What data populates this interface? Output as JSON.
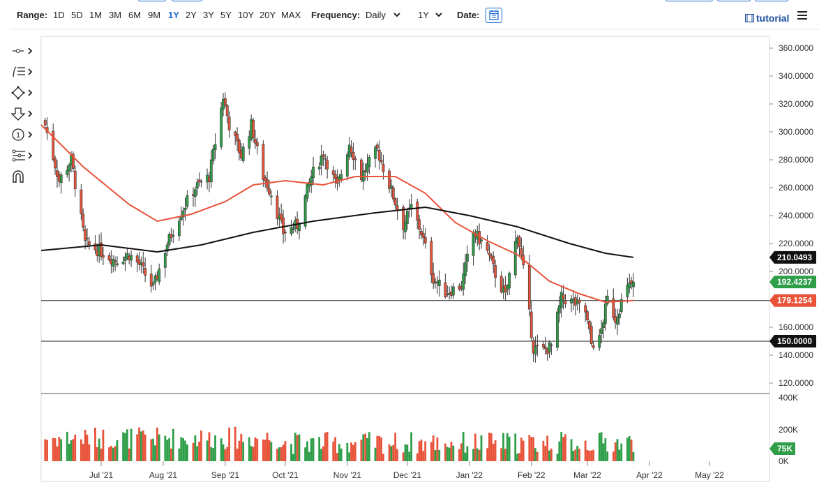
{
  "toolbar": {
    "range_label": "Range:",
    "ranges": [
      "1D",
      "5D",
      "1M",
      "3M",
      "6M",
      "9M",
      "1Y",
      "2Y",
      "3Y",
      "5Y",
      "10Y",
      "20Y",
      "MAX"
    ],
    "active_range": "1Y",
    "frequency_label": "Frequency:",
    "frequency_value": "Daily",
    "period_value": "1Y",
    "date_label": "Date:",
    "tutorial_label": "tutorial",
    "icons": [
      "chevron-down-icon",
      "calendar-icon",
      "film-icon",
      "hamburger-menu-icon"
    ]
  },
  "sidebar_tools": [
    "crosshair-tool-icon",
    "trendline-tool-icon",
    "shape-tool-icon",
    "arrow-tool-icon",
    "annotation-tool-icon",
    "fibonacci-tool-icon",
    "magnet-tool-icon"
  ],
  "colors": {
    "up": "#2e9e48",
    "down": "#e8533a",
    "ma_fast": "#e8533a",
    "ma_slow": "#111111",
    "tag_green": "#2e9e48",
    "tag_red": "#e8533a",
    "tag_black": "#111111"
  },
  "chart_data": {
    "type": "candlestick",
    "price_axis": {
      "ticks": [
        "360.0000",
        "340.0000",
        "320.0000",
        "300.0000",
        "280.0000",
        "260.0000",
        "240.0000",
        "220.0000",
        "200.0000",
        "160.0000",
        "140.0000",
        "120.0000"
      ],
      "range": [
        113,
        372
      ]
    },
    "volume_axis": {
      "ticks": [
        "400K",
        "200K",
        "0K"
      ],
      "range": [
        0,
        400000
      ]
    },
    "x_axis_labels": [
      "Jul '21",
      "Aug '21",
      "Sep '21",
      "Oct '21",
      "Nov '21",
      "Dec '21",
      "Jan '22",
      "Feb '22",
      "Mar '22",
      "Apr '22",
      "May '22"
    ],
    "x_range": [
      "2021-06-01",
      "2022-05-31"
    ],
    "horizontal_lines": [
      179.1254,
      150.0
    ],
    "price_tags": [
      {
        "label": "210.0493",
        "value": 210.0493,
        "color": "#111111"
      },
      {
        "label": "192.4237",
        "value": 192.4237,
        "color": "#2e9e48"
      },
      {
        "label": "179.1254",
        "value": 179.1254,
        "color": "#e8533a"
      },
      {
        "label": "150.0000",
        "value": 150.0,
        "color": "#111111"
      }
    ],
    "volume_tag": {
      "label": "75K",
      "value": 75000,
      "color": "#2e9e48"
    },
    "anchors": [
      [
        "2021-06-03",
        305
      ],
      [
        "2021-06-10",
        265
      ],
      [
        "2021-06-16",
        280
      ],
      [
        "2021-06-23",
        220
      ],
      [
        "2021-06-30",
        215
      ],
      [
        "2021-07-08",
        208
      ],
      [
        "2021-07-15",
        212
      ],
      [
        "2021-07-20",
        205
      ],
      [
        "2021-07-27",
        188
      ],
      [
        "2021-08-03",
        220
      ],
      [
        "2021-08-10",
        243
      ],
      [
        "2021-08-17",
        260
      ],
      [
        "2021-08-24",
        268
      ],
      [
        "2021-08-31",
        325
      ],
      [
        "2021-09-03",
        305
      ],
      [
        "2021-09-09",
        283
      ],
      [
        "2021-09-14",
        305
      ],
      [
        "2021-09-20",
        268
      ],
      [
        "2021-09-24",
        256
      ],
      [
        "2021-09-30",
        228
      ],
      [
        "2021-10-07",
        233
      ],
      [
        "2021-10-14",
        268
      ],
      [
        "2021-10-20",
        285
      ],
      [
        "2021-10-27",
        260
      ],
      [
        "2021-11-02",
        292
      ],
      [
        "2021-11-08",
        268
      ],
      [
        "2021-11-16",
        287
      ],
      [
        "2021-11-22",
        262
      ],
      [
        "2021-11-29",
        233
      ],
      [
        "2021-12-03",
        246
      ],
      [
        "2021-12-08",
        228
      ],
      [
        "2021-12-14",
        195
      ],
      [
        "2021-12-20",
        185
      ],
      [
        "2021-12-28",
        190
      ],
      [
        "2022-01-03",
        228
      ],
      [
        "2022-01-09",
        218
      ],
      [
        "2022-01-14",
        198
      ],
      [
        "2022-01-19",
        182
      ],
      [
        "2022-01-25",
        228
      ],
      [
        "2022-01-29",
        192
      ],
      [
        "2022-02-02",
        145
      ],
      [
        "2022-02-06",
        143
      ],
      [
        "2022-02-11",
        146
      ],
      [
        "2022-02-16",
        181
      ],
      [
        "2022-02-22",
        178
      ],
      [
        "2022-02-28",
        171
      ],
      [
        "2022-03-03",
        148
      ],
      [
        "2022-03-07",
        151
      ],
      [
        "2022-03-11",
        180
      ],
      [
        "2022-03-15",
        166
      ],
      [
        "2022-03-20",
        186
      ],
      [
        "2022-03-24",
        192.4237
      ]
    ],
    "series": [
      {
        "name": "",
        "style": "line",
        "color": "#e8533a",
        "points": [
          [
            "2021-06-01",
            305
          ],
          [
            "2021-06-22",
            275
          ],
          [
            "2021-07-15",
            248
          ],
          [
            "2021-07-29",
            236
          ],
          [
            "2021-08-15",
            241
          ],
          [
            "2021-09-01",
            250
          ],
          [
            "2021-09-15",
            262
          ],
          [
            "2021-10-01",
            265
          ],
          [
            "2021-10-20",
            262
          ],
          [
            "2021-11-05",
            268
          ],
          [
            "2021-11-25",
            268
          ],
          [
            "2021-12-10",
            256
          ],
          [
            "2021-12-25",
            235
          ],
          [
            "2022-01-10",
            222
          ],
          [
            "2022-01-25",
            212
          ],
          [
            "2022-02-10",
            193
          ],
          [
            "2022-02-25",
            184
          ],
          [
            "2022-03-10",
            178
          ],
          [
            "2022-03-24",
            179.1254
          ]
        ]
      },
      {
        "name": "",
        "style": "line",
        "color": "#111111",
        "points": [
          [
            "2021-06-01",
            215
          ],
          [
            "2021-07-01",
            219
          ],
          [
            "2021-07-29",
            214
          ],
          [
            "2021-08-20",
            219
          ],
          [
            "2021-09-15",
            228
          ],
          [
            "2021-10-15",
            236
          ],
          [
            "2021-11-15",
            242
          ],
          [
            "2021-12-10",
            246
          ],
          [
            "2022-01-01",
            240
          ],
          [
            "2022-01-25",
            232
          ],
          [
            "2022-02-20",
            220
          ],
          [
            "2022-03-10",
            213
          ],
          [
            "2022-03-24",
            210.0493
          ]
        ]
      }
    ]
  }
}
